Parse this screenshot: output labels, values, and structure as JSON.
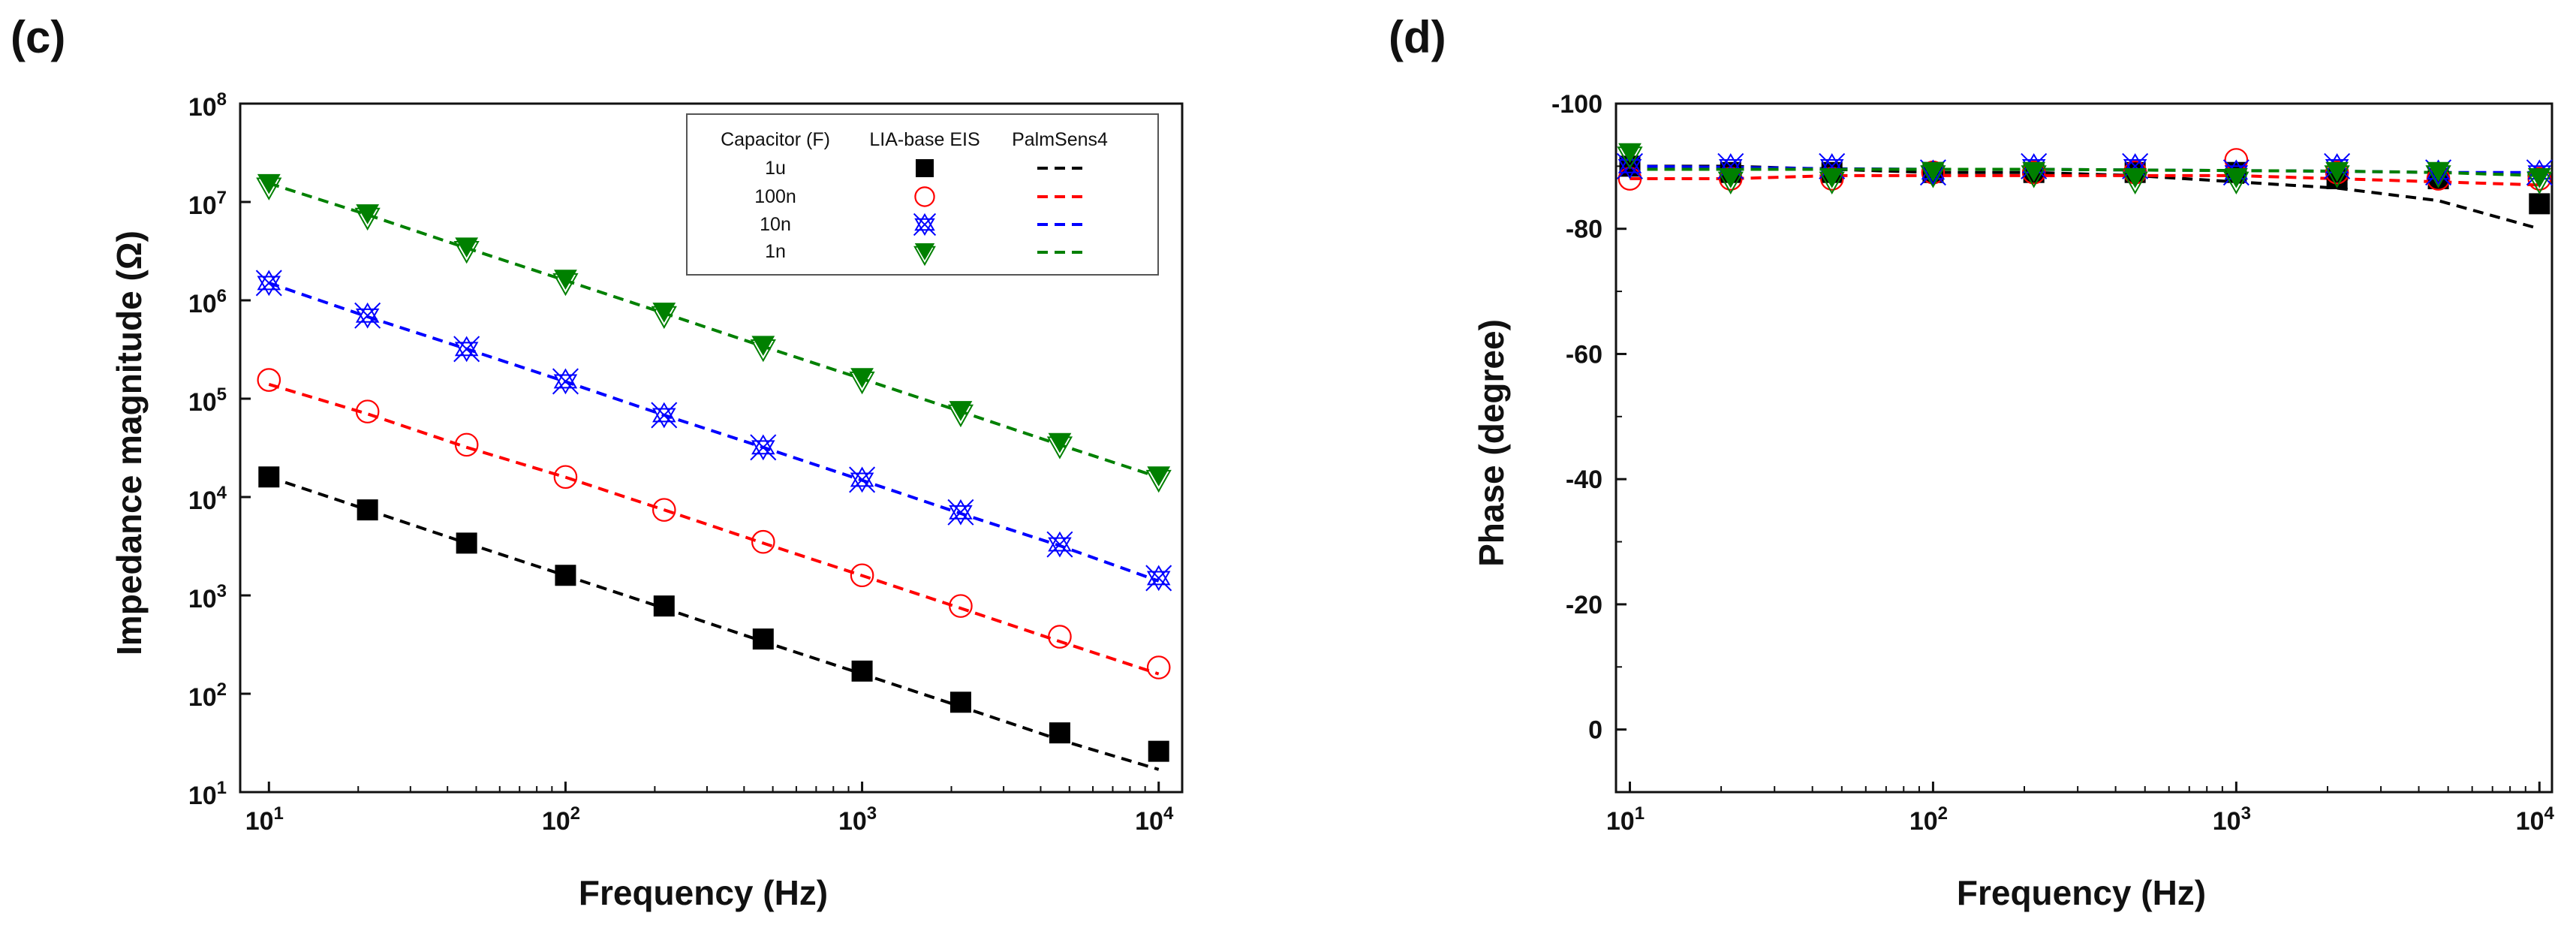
{
  "panels": {
    "c": {
      "label": "(c)"
    },
    "d": {
      "label": "(d)"
    }
  },
  "legend": {
    "header_capacitor": "Capacitor (F)",
    "header_lia": "LIA-base EIS",
    "header_palmsens": "PalmSens4",
    "rows": [
      "1u",
      "100n",
      "10n",
      "1n"
    ]
  },
  "chart_data": [
    {
      "id": "c",
      "type": "scatter",
      "title": "",
      "xlabel": "Frequency (Hz)",
      "ylabel": "Impedance magnitude (Ω)",
      "xscale": "log",
      "yscale": "log",
      "xlim": [
        8,
        12000
      ],
      "ylim": [
        10,
        100000000
      ],
      "xticks": [
        {
          "base": "10",
          "exp": "1",
          "value": 10
        },
        {
          "base": "10",
          "exp": "2",
          "value": 100
        },
        {
          "base": "10",
          "exp": "3",
          "value": 1000
        },
        {
          "base": "10",
          "exp": "4",
          "value": 10000
        }
      ],
      "yticks": [
        {
          "base": "10",
          "exp": "1",
          "value": 10
        },
        {
          "base": "10",
          "exp": "2",
          "value": 100
        },
        {
          "base": "10",
          "exp": "3",
          "value": 1000
        },
        {
          "base": "10",
          "exp": "4",
          "value": 10000
        },
        {
          "base": "10",
          "exp": "5",
          "value": 100000
        },
        {
          "base": "10",
          "exp": "6",
          "value": 1000000
        },
        {
          "base": "10",
          "exp": "7",
          "value": 10000000
        },
        {
          "base": "10",
          "exp": "8",
          "value": 100000000
        }
      ],
      "x": [
        10,
        21.5,
        46.4,
        100,
        215,
        464,
        1000,
        2150,
        4640,
        10000
      ],
      "legend_position": "top-right",
      "series": [
        {
          "name": "1u",
          "marker": "filled-square",
          "color": "#000000",
          "markers": [
            16000,
            7400,
            3400,
            1600,
            780,
            360,
            170,
            82,
            40,
            26
          ],
          "line": [
            16000,
            7400,
            3400,
            1590,
            740,
            340,
            159,
            74,
            34,
            17
          ]
        },
        {
          "name": "100n",
          "marker": "open-circle",
          "color": "#ff0000",
          "markers": [
            155000,
            74000,
            34000,
            16000,
            7400,
            3500,
            1600,
            780,
            380,
            185
          ],
          "line": [
            140000,
            70000,
            32000,
            15900,
            7400,
            3400,
            1590,
            740,
            340,
            159
          ]
        },
        {
          "name": "10n",
          "marker": "star-x",
          "color": "#0000ff",
          "markers": [
            1500000,
            700000,
            320000,
            150000,
            68000,
            32000,
            15000,
            7000,
            3300,
            1500
          ],
          "line": [
            1500000,
            680000,
            320000,
            149000,
            68000,
            32000,
            14800,
            6800,
            3200,
            1400
          ]
        },
        {
          "name": "1n",
          "marker": "green-triangle",
          "color": "#008000",
          "markers": [
            15000000,
            7400000,
            3400000,
            1600000,
            740000,
            340000,
            160000,
            74000,
            35000,
            16000
          ],
          "line": [
            15500000,
            7400000,
            3400000,
            1590000,
            740000,
            340000,
            159000,
            74000,
            34000,
            15900
          ]
        }
      ]
    },
    {
      "id": "d",
      "type": "scatter",
      "title": "",
      "xlabel": "Frequency (Hz)",
      "ylabel": "Phase (degree)",
      "xscale": "log",
      "yscale": "linear-inverted",
      "xlim": [
        9,
        11000
      ],
      "ylim": [
        10,
        -100
      ],
      "xticks": [
        {
          "base": "10",
          "exp": "1",
          "value": 10
        },
        {
          "base": "10",
          "exp": "2",
          "value": 100
        },
        {
          "base": "10",
          "exp": "3",
          "value": 1000
        },
        {
          "base": "10",
          "exp": "4",
          "value": 10000
        }
      ],
      "yticks": [
        {
          "label": "-100",
          "value": -100
        },
        {
          "label": "-80",
          "value": -80
        },
        {
          "label": "-60",
          "value": -60
        },
        {
          "label": "-40",
          "value": -40
        },
        {
          "label": "-20",
          "value": -20
        },
        {
          "label": "0",
          "value": 0
        }
      ],
      "x": [
        10,
        21.5,
        46.4,
        100,
        215,
        464,
        1000,
        2150,
        4640,
        10000
      ],
      "series": [
        {
          "name": "1u",
          "marker": "filled-square",
          "color": "#000000",
          "markers": [
            -90,
            -89,
            -89,
            -89,
            -89,
            -89,
            -89,
            -88,
            -88,
            -84
          ],
          "line": [
            -90,
            -90,
            -89.5,
            -89,
            -89,
            -88.5,
            -87.5,
            -86.5,
            -84.5,
            -80
          ]
        },
        {
          "name": "100n",
          "marker": "open-circle",
          "color": "#ff0000",
          "markers": [
            -88,
            -88,
            -88,
            -89,
            -89,
            -89,
            -91,
            -89,
            -88,
            -88
          ],
          "line": [
            -88,
            -88,
            -88.5,
            -88.5,
            -88.5,
            -88.5,
            -88.5,
            -88,
            -87.5,
            -87
          ]
        },
        {
          "name": "10n",
          "marker": "star-x",
          "color": "#0000ff",
          "markers": [
            -90,
            -90,
            -90,
            -89,
            -90,
            -90,
            -89,
            -90,
            -89,
            -89
          ],
          "line": [
            -90,
            -89.8,
            -89.6,
            -89.5,
            -89.5,
            -89.4,
            -89.3,
            -89.2,
            -89,
            -89
          ]
        },
        {
          "name": "1n",
          "marker": "green-triangle",
          "color": "#008000",
          "markers": [
            -92,
            -88,
            -88,
            -89,
            -89,
            -88,
            -88,
            -89,
            -89,
            -88
          ],
          "line": [
            -89.5,
            -89.5,
            -89.5,
            -89.5,
            -89.5,
            -89.4,
            -89.3,
            -89.2,
            -89,
            -88.5
          ]
        }
      ]
    }
  ]
}
